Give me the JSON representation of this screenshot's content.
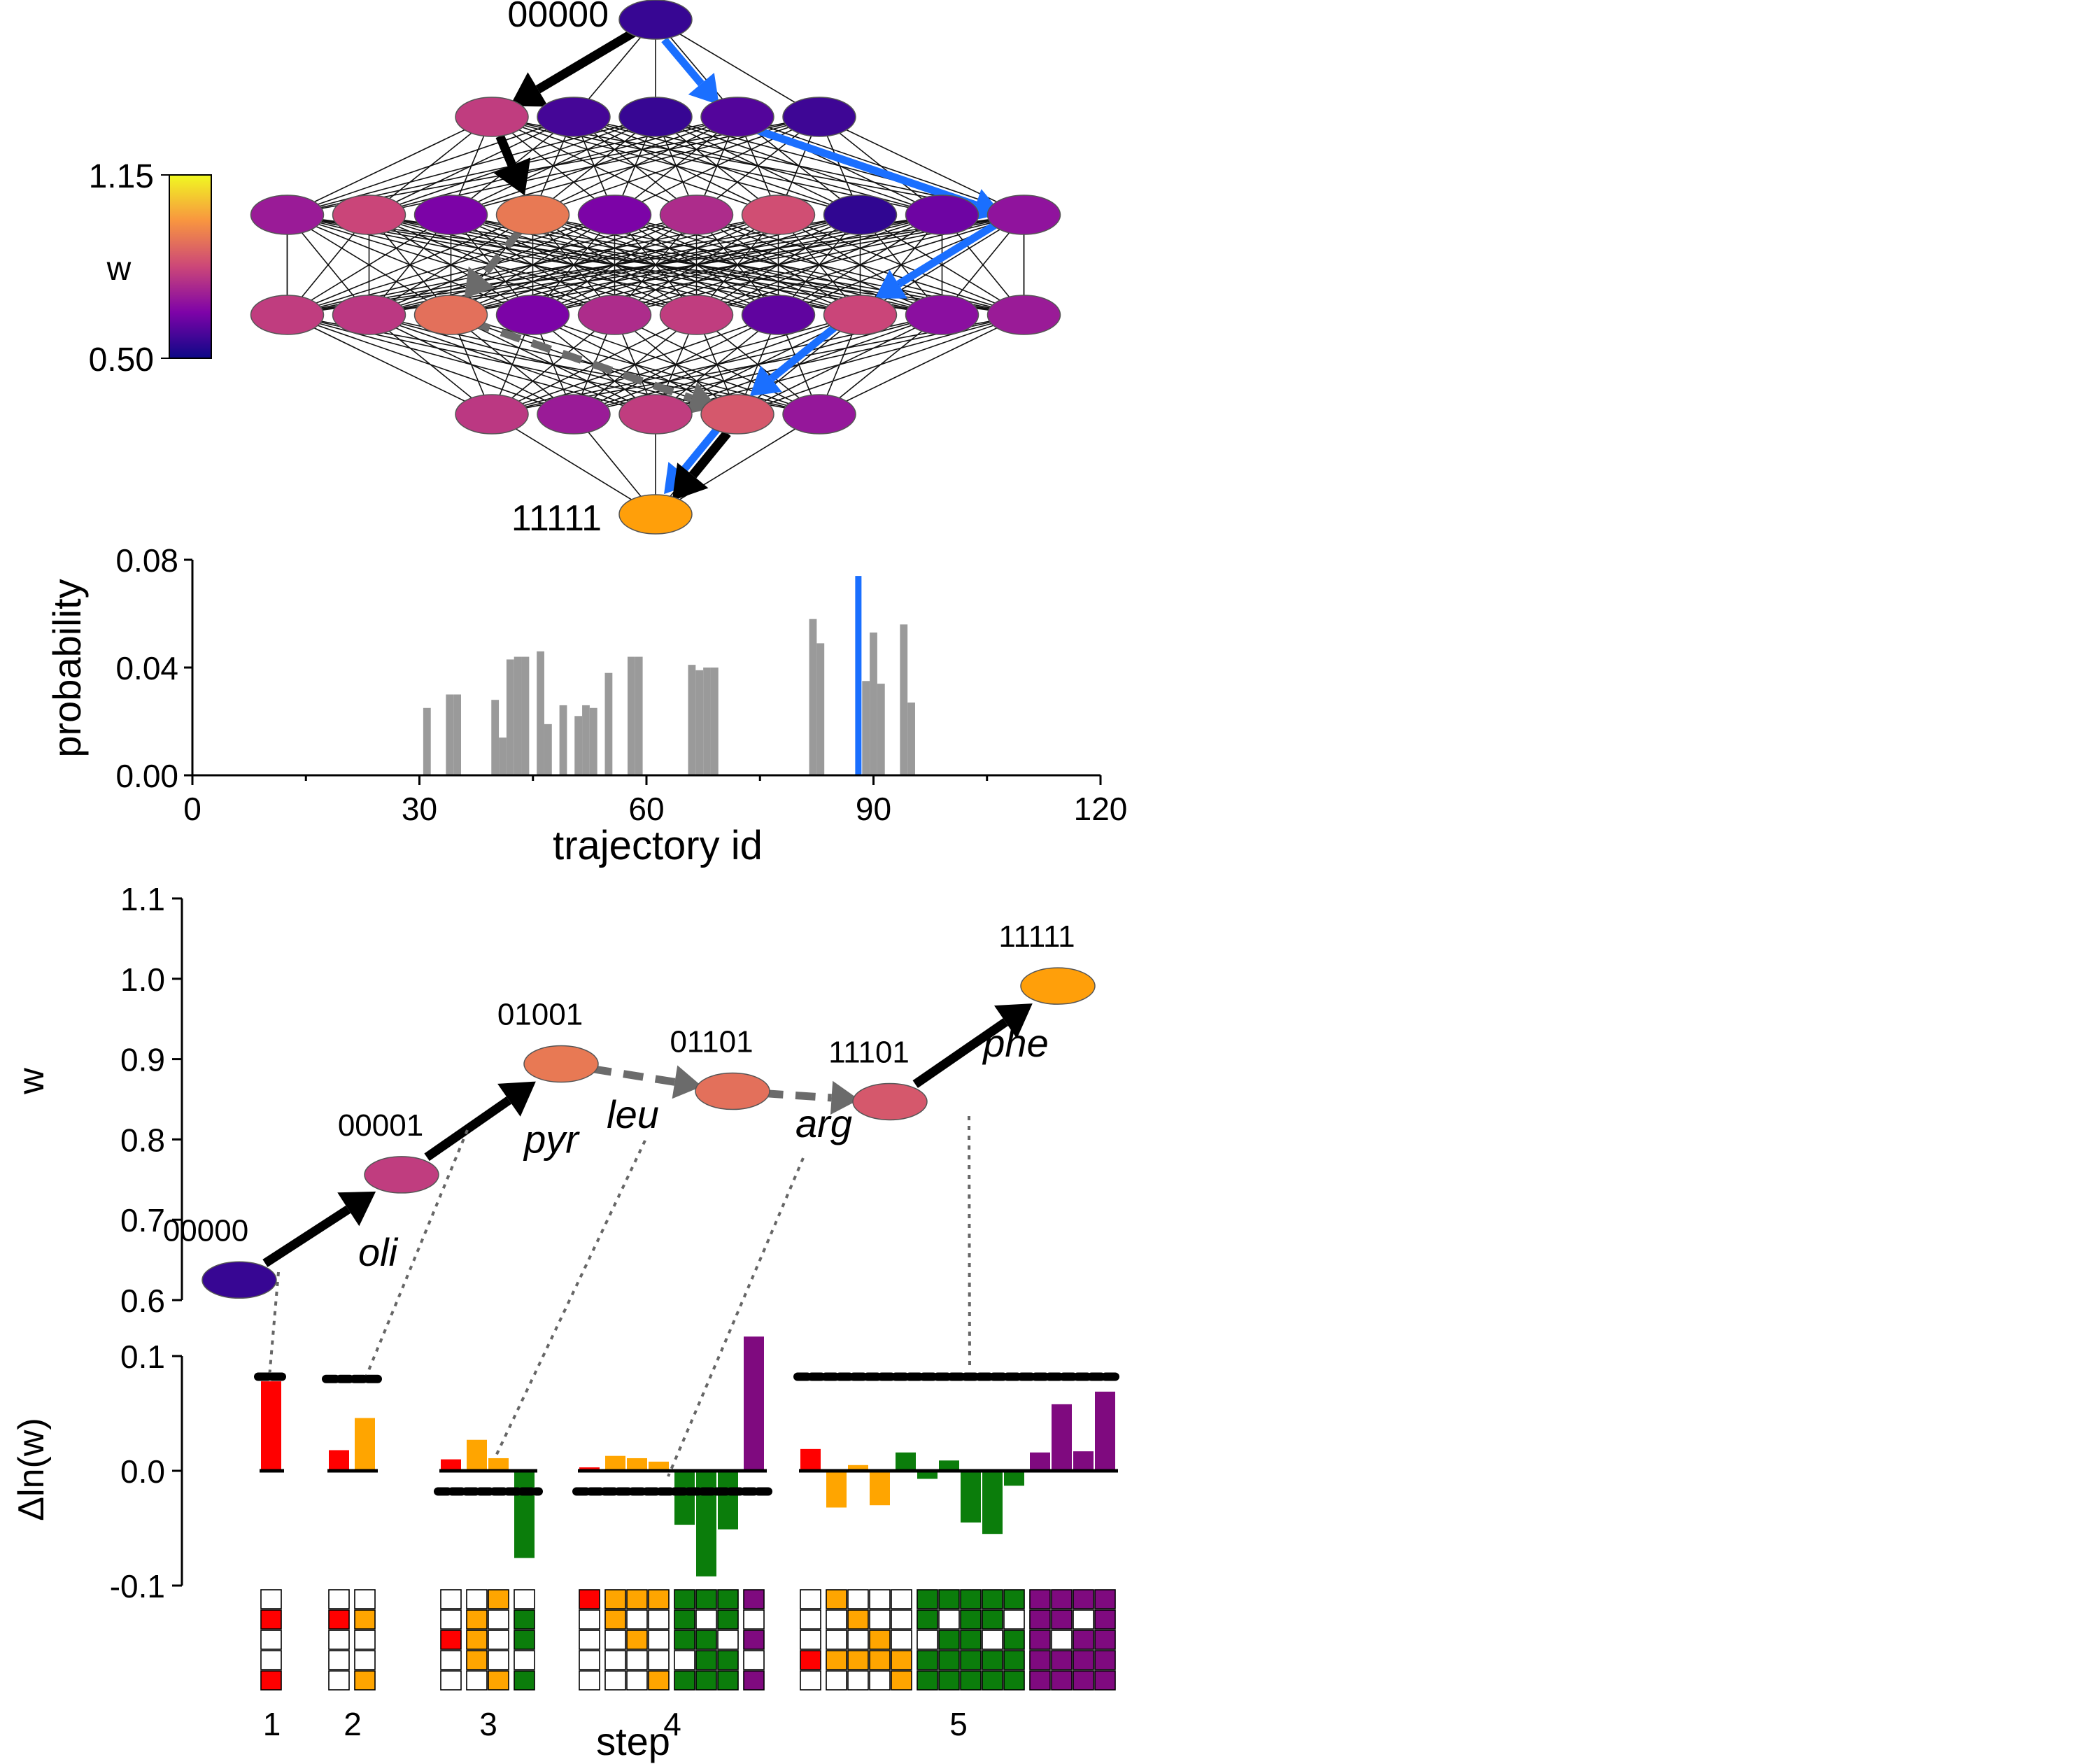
{
  "colors": {
    "blue": "#1a6fff",
    "black": "#000000",
    "gray": "#6b6b6b",
    "bar_gray": "#9a9a9a",
    "red": "#ff0000",
    "orange": "#ffa500",
    "green": "#0b7d0b",
    "purple": "#7f0a7f",
    "endpoint": "#ff9f0a"
  },
  "chart_data": [
    {
      "type": "network",
      "start_label": "00000",
      "end_label": "11111",
      "colorbar": {
        "label": "w",
        "max_label": "1.15",
        "min_label": "0.50",
        "min": 0.5,
        "max": 1.15,
        "colormap": "plasma"
      },
      "layers": [
        [
          0.56
        ],
        [
          0.8,
          0.58,
          0.56,
          0.6,
          0.57
        ],
        [
          0.72,
          0.82,
          0.66,
          0.93,
          0.66,
          0.76,
          0.84,
          0.55,
          0.64,
          0.7
        ],
        [
          0.8,
          0.79,
          0.91,
          0.66,
          0.76,
          0.8,
          0.62,
          0.82,
          0.69,
          0.72
        ],
        [
          0.79,
          0.72,
          0.8,
          0.86,
          0.71
        ],
        [
          0.99
        ]
      ],
      "paths": {
        "black": [
          [
            0,
            0
          ],
          [
            1,
            0
          ],
          [
            2,
            3
          ]
        ],
        "gray_dashed": [
          [
            2,
            3
          ],
          [
            3,
            2
          ],
          [
            4,
            3
          ]
        ],
        "black_end": [
          [
            4,
            3
          ],
          [
            5,
            0
          ]
        ],
        "blue": [
          [
            0,
            0
          ],
          [
            1,
            3
          ],
          [
            2,
            9
          ],
          [
            3,
            7
          ],
          [
            4,
            3
          ],
          [
            5,
            0
          ]
        ]
      }
    },
    {
      "type": "bar",
      "xlabel": "trajectory id",
      "ylabel": "probability",
      "xlim": [
        0,
        120
      ],
      "ylim": [
        0,
        0.08
      ],
      "xticks": [
        0,
        30,
        60,
        90,
        120
      ],
      "yticks": [
        "0.00",
        "0.04",
        "0.08"
      ],
      "bars": [
        {
          "x": 31,
          "y": 0.025
        },
        {
          "x": 34,
          "y": 0.03
        },
        {
          "x": 35,
          "y": 0.03
        },
        {
          "x": 40,
          "y": 0.028
        },
        {
          "x": 41,
          "y": 0.014
        },
        {
          "x": 42,
          "y": 0.043
        },
        {
          "x": 43,
          "y": 0.044
        },
        {
          "x": 44,
          "y": 0.044
        },
        {
          "x": 46,
          "y": 0.046
        },
        {
          "x": 47,
          "y": 0.019
        },
        {
          "x": 49,
          "y": 0.026
        },
        {
          "x": 51,
          "y": 0.022
        },
        {
          "x": 52,
          "y": 0.026
        },
        {
          "x": 53,
          "y": 0.025
        },
        {
          "x": 55,
          "y": 0.038
        },
        {
          "x": 58,
          "y": 0.044
        },
        {
          "x": 59,
          "y": 0.044
        },
        {
          "x": 66,
          "y": 0.041
        },
        {
          "x": 67,
          "y": 0.039
        },
        {
          "x": 68,
          "y": 0.04
        },
        {
          "x": 69,
          "y": 0.04
        },
        {
          "x": 82,
          "y": 0.058
        },
        {
          "x": 83,
          "y": 0.049
        },
        {
          "x": 89,
          "y": 0.035
        },
        {
          "x": 90,
          "y": 0.053
        },
        {
          "x": 91,
          "y": 0.034
        },
        {
          "x": 94,
          "y": 0.056
        },
        {
          "x": 95,
          "y": 0.027
        }
      ],
      "highlight": {
        "x": 88,
        "y": 0.074
      }
    },
    {
      "type": "line",
      "ylabel": "w",
      "ylim": [
        0.6,
        1.1
      ],
      "yticks": [
        "0.6",
        "0.7",
        "0.8",
        "0.9",
        "1.0",
        "1.1"
      ],
      "nodes": [
        {
          "id": "00000",
          "x": 0.0,
          "y": 0.625
        },
        {
          "id": "00001",
          "x": 1.0,
          "y": 0.756
        },
        {
          "id": "01001",
          "x": 2.0,
          "y": 0.894
        },
        {
          "id": "01101",
          "x": 3.0,
          "y": 0.86
        },
        {
          "id": "11101",
          "x": 4.0,
          "y": 0.847
        },
        {
          "id": "11111",
          "x": 5.0,
          "y": 0.991
        }
      ],
      "edges": [
        {
          "label": "oli",
          "style": "solid"
        },
        {
          "label": "pyr",
          "style": "solid"
        },
        {
          "label": "leu",
          "style": "dashed"
        },
        {
          "label": "arg",
          "style": "dashed"
        },
        {
          "label": "phe",
          "style": "solid"
        }
      ]
    },
    {
      "type": "bar",
      "xlabel": "step",
      "ylabel": "Δln(w)",
      "ylim": [
        -0.1,
        0.1
      ],
      "yticks": [
        "0.1",
        "0.0",
        "-0.1"
      ],
      "steps": [
        {
          "label": "1",
          "ref": 0.082,
          "groups": [
            {
              "color": "red",
              "values": [
                0.078
              ]
            }
          ]
        },
        {
          "label": "2",
          "ref": 0.08,
          "groups": [
            {
              "color": "red",
              "values": [
                0.018
              ]
            },
            {
              "color": "orange",
              "values": [
                0.046
              ]
            }
          ]
        },
        {
          "label": "3",
          "ref": -0.018,
          "groups": [
            {
              "color": "red",
              "values": [
                0.01
              ]
            },
            {
              "color": "orange",
              "values": [
                0.027,
                0.011
              ]
            },
            {
              "color": "green",
              "values": [
                -0.076
              ]
            }
          ]
        },
        {
          "label": "4",
          "ref": -0.018,
          "groups": [
            {
              "color": "red",
              "values": [
                0.003
              ]
            },
            {
              "color": "orange",
              "values": [
                0.013,
                0.011,
                0.008
              ]
            },
            {
              "color": "green",
              "values": [
                -0.047,
                -0.092,
                -0.051
              ]
            },
            {
              "color": "purple",
              "values": [
                0.117
              ]
            }
          ]
        },
        {
          "label": "5",
          "ref": 0.082,
          "groups": [
            {
              "color": "red",
              "values": [
                0.019
              ]
            },
            {
              "color": "orange",
              "values": [
                -0.032,
                0.005,
                -0.03
              ]
            },
            {
              "color": "green",
              "values": [
                0.016,
                -0.007,
                0.009,
                -0.045,
                -0.055,
                -0.013
              ]
            },
            {
              "color": "purple",
              "values": [
                0.016,
                0.058,
                0.017,
                0.069
              ]
            }
          ]
        }
      ],
      "grids": [
        {
          "step": "1",
          "columns": [
            {
              "color": "red",
              "cells": [
                1,
                4
              ]
            }
          ]
        },
        {
          "step": "2",
          "columns": [
            {
              "color": "red",
              "cells": [
                1
              ]
            },
            {
              "color": "orange",
              "cells": [
                1,
                4
              ]
            }
          ]
        },
        {
          "step": "3",
          "columns": [
            {
              "color": "red",
              "cells": [
                2
              ]
            },
            {
              "color": "orange",
              "cells": [
                1,
                2,
                3
              ]
            },
            {
              "color": "orange",
              "cells": [
                0,
                4
              ]
            },
            {
              "color": "green",
              "cells": [
                1,
                2,
                4
              ]
            }
          ]
        },
        {
          "step": "4",
          "columns": [
            {
              "color": "red",
              "cells": [
                0
              ]
            },
            {
              "color": "orange",
              "cells": [
                0,
                1
              ]
            },
            {
              "color": "orange",
              "cells": [
                0,
                2
              ]
            },
            {
              "color": "orange",
              "cells": [
                0,
                4
              ]
            },
            {
              "color": "green",
              "cells": [
                0,
                1,
                2,
                4
              ]
            },
            {
              "color": "green",
              "cells": [
                0,
                2,
                3,
                4
              ]
            },
            {
              "color": "green",
              "cells": [
                0,
                1,
                3,
                4
              ]
            },
            {
              "color": "purple",
              "cells": [
                0,
                2,
                4
              ]
            }
          ]
        },
        {
          "step": "5",
          "columns": [
            {
              "color": "red",
              "cells": [
                3
              ]
            },
            {
              "color": "orange",
              "cells": [
                0,
                3
              ]
            },
            {
              "color": "orange",
              "cells": [
                1,
                3
              ]
            },
            {
              "color": "orange",
              "cells": [
                2,
                3
              ]
            },
            {
              "color": "orange",
              "cells": [
                3,
                4
              ]
            },
            {
              "color": "green",
              "cells": [
                0,
                1,
                3,
                4
              ]
            },
            {
              "color": "green",
              "cells": [
                0,
                2,
                3,
                4
              ]
            },
            {
              "color": "green",
              "cells": [
                0,
                1,
                2,
                3,
                4
              ]
            },
            {
              "color": "green",
              "cells": [
                0,
                1,
                3,
                4
              ]
            },
            {
              "color": "green",
              "cells": [
                0,
                2,
                3,
                4
              ]
            },
            {
              "color": "purple",
              "cells": [
                0,
                1,
                2,
                3,
                4
              ]
            },
            {
              "color": "purple",
              "cells": [
                0,
                1,
                3,
                4
              ]
            },
            {
              "color": "purple",
              "cells": [
                0,
                2,
                3,
                4
              ]
            },
            {
              "color": "purple",
              "cells": [
                0,
                1,
                2,
                3,
                4
              ]
            }
          ]
        }
      ]
    }
  ]
}
